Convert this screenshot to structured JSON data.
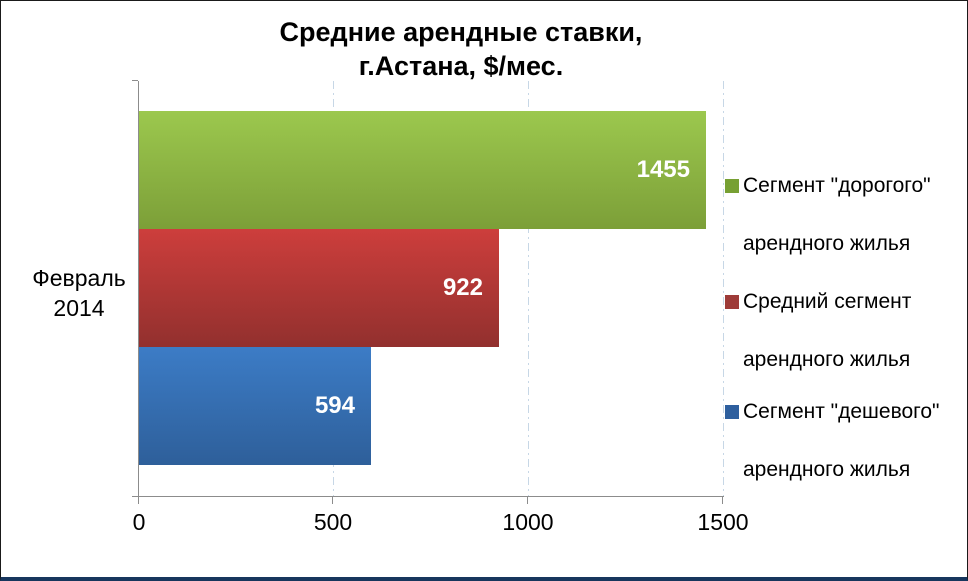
{
  "chart_data": {
    "type": "bar",
    "orientation": "horizontal",
    "title_line1": "Средние арендные ставки,",
    "title_line2": "г.Астана, $/мес.",
    "category_label_line1": "Февраль",
    "category_label_line2": "2014",
    "xlim": [
      0,
      1500
    ],
    "x_ticks": [
      "0",
      "500",
      "1000",
      "1500"
    ],
    "grid": "vertical dash-dot gridlines at 500/1000/1500",
    "gridline_color": "#c7d7e6",
    "axis_color": "#8c8c8c",
    "value_label_color": "#ffffff",
    "legend_position": "right",
    "series": [
      {
        "name": "Сегмент \"дорогого\" арендного жилья",
        "legend_line1": "Сегмент \"дорогого\"",
        "legend_line2": "арендного жилья",
        "value": 1455,
        "value_label": "1455",
        "color_top": "#9cc84e",
        "color_bottom": "#7c9f38",
        "legend_color": "#77a033"
      },
      {
        "name": "Средний сегмент арендного жилья",
        "legend_line1": "Средний сегмент",
        "legend_line2": "арендного жилья",
        "value": 922,
        "value_label": "922",
        "color_top": "#cd3e3c",
        "color_bottom": "#92302e",
        "legend_color": "#9e3b38"
      },
      {
        "name": "Сегмент \"дешевого\" арендного жилья",
        "legend_line1": "Сегмент \"дешевого\"",
        "legend_line2": "арендного жилья",
        "value": 594,
        "value_label": "594",
        "color_top": "#3c7cc6",
        "color_bottom": "#2e5f9a",
        "legend_color": "#2e5f9e"
      }
    ]
  }
}
